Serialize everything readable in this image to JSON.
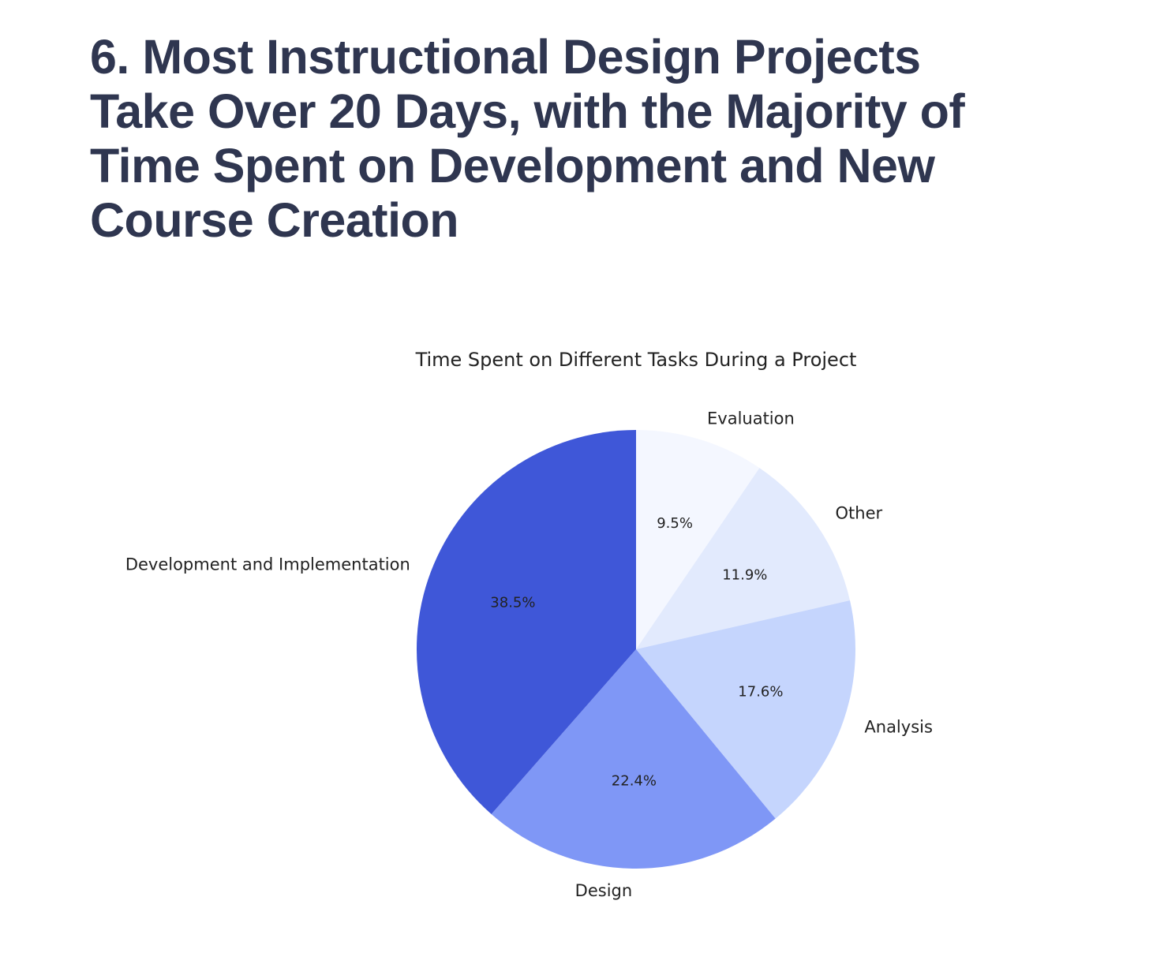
{
  "article": {
    "heading": "6. Most Instructional Design Projects Take Over 20 Days, with the Majority of Time Spent on Development and New Course Creation"
  },
  "chart_data": {
    "type": "pie",
    "title": "Time Spent on Different Tasks During a Project",
    "start_angle": 90,
    "direction": "clockwise",
    "slices": [
      {
        "label": "Evaluation",
        "value": 9.5,
        "pct_label": "9.5%",
        "color": "#f4f7ff"
      },
      {
        "label": "Other",
        "value": 11.9,
        "pct_label": "11.9%",
        "color": "#e2eafd"
      },
      {
        "label": "Analysis",
        "value": 17.6,
        "pct_label": "17.6%",
        "color": "#c5d5fd"
      },
      {
        "label": "Design",
        "value": 22.4,
        "pct_label": "22.4%",
        "color": "#7f97f6"
      },
      {
        "label": "Development and Implementation",
        "value": 38.5,
        "pct_label": "38.5%",
        "color": "#3f57d8"
      }
    ]
  }
}
